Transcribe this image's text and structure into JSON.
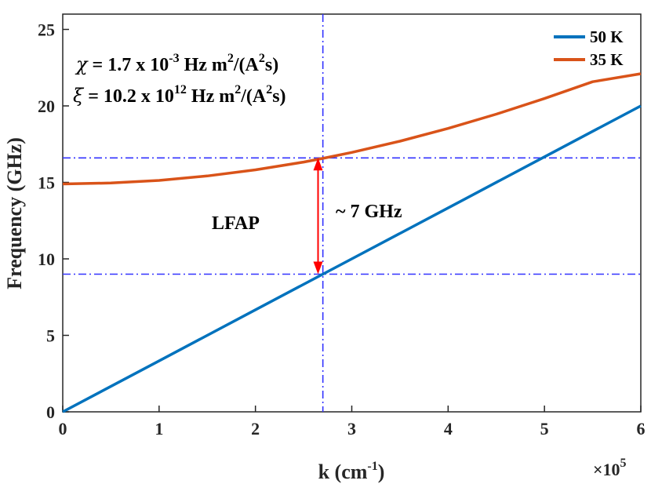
{
  "chart_data": {
    "type": "line",
    "xlabel": "k (cm",
    "xlabel_sup": "-1",
    "xlabel_close": ")",
    "ylabel": "Frequency (GHz)",
    "x_multiplier": "×10",
    "x_multiplier_sup": "5",
    "xlim": [
      0,
      6
    ],
    "ylim": [
      0,
      26
    ],
    "x_ticks": [
      0,
      1,
      2,
      3,
      4,
      5,
      6
    ],
    "y_ticks": [
      0,
      5,
      10,
      15,
      20,
      25
    ],
    "grid": false,
    "legend_position": "top-right",
    "series": [
      {
        "name": "50 K",
        "color": "#0072BD",
        "x": [
          0,
          1,
          2,
          3,
          4,
          5,
          6
        ],
        "values": [
          0,
          3.33,
          6.67,
          10.0,
          13.33,
          16.67,
          20.0
        ]
      },
      {
        "name": "35 K",
        "color": "#D95319",
        "x": [
          0,
          0.5,
          1,
          1.5,
          2,
          2.5,
          2.7,
          3,
          3.5,
          4,
          4.5,
          5,
          5.5,
          6
        ],
        "values": [
          14.9,
          14.96,
          15.13,
          15.42,
          15.82,
          16.33,
          16.57,
          16.96,
          17.69,
          18.53,
          19.46,
          20.48,
          21.58,
          22.1
        ]
      }
    ],
    "reference_lines": {
      "color": "#3333FF",
      "vertical_x": 2.7,
      "horizontal_y": [
        16.6,
        9.0
      ]
    },
    "gap_arrow": {
      "x": 2.65,
      "y_from": 16.6,
      "y_to": 9.0,
      "color": "#FF0000"
    },
    "annotations": {
      "lfap": "LFAP",
      "gap": "~ 7 GHz",
      "chi_sym": "χ",
      "chi_text": " = 1.7 x 10",
      "chi_exp": "-3",
      "chi_units": " Hz m",
      "chi_units_exp": "2",
      "chi_units_tail": "/(A",
      "chi_tail_exp": "2",
      "chi_end": "s)",
      "xi_sym": "ξ",
      "xi_text": " = 10.2 x 10",
      "xi_exp": "12",
      "xi_units": " Hz m",
      "xi_units_exp": "2",
      "xi_units_tail": "/(A",
      "xi_tail_exp": "2",
      "xi_end": "s)"
    }
  }
}
